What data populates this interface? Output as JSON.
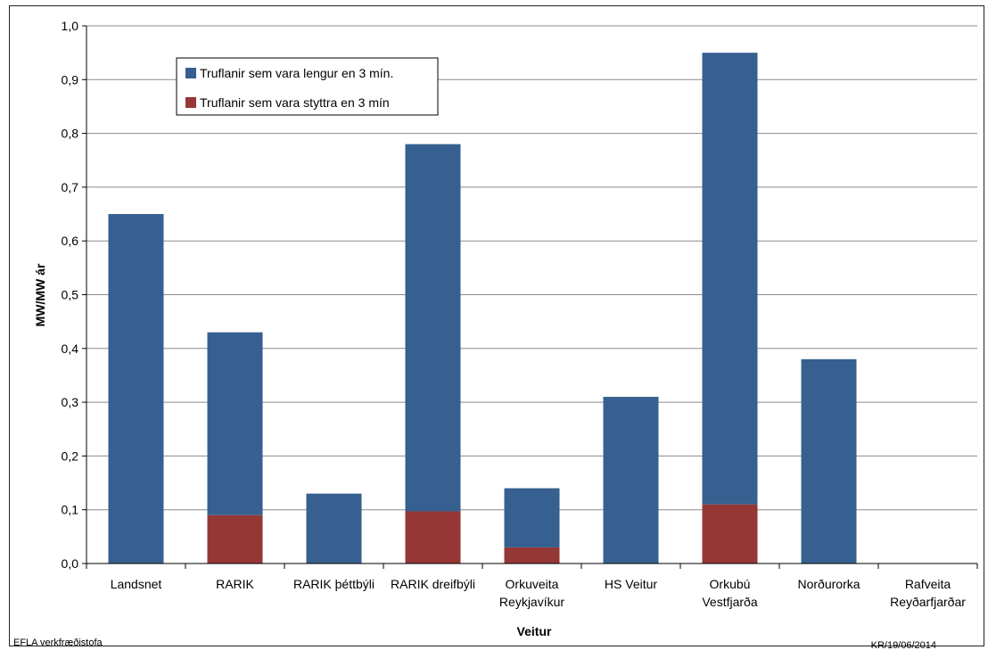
{
  "chart_data": {
    "type": "bar",
    "stacked": true,
    "categories": [
      [
        "Landsnet"
      ],
      [
        "RARIK"
      ],
      [
        "RARIK þéttbýli"
      ],
      [
        "RARIK dreifbýli"
      ],
      [
        "Orkuveita",
        "Reykjavíkur"
      ],
      [
        "HS Veitur"
      ],
      [
        "Orkubú",
        "Vestfjarða"
      ],
      [
        "Norðurorka"
      ],
      [
        "Rafveita",
        "Reyðarfjarðar"
      ]
    ],
    "series": [
      {
        "name": "Truflanir sem vara styttra en 3 mín",
        "color": "#953735",
        "values": [
          0,
          0.09,
          0,
          0.097,
          0.03,
          0,
          0.11,
          0,
          0
        ]
      },
      {
        "name": "Truflanir sem vara lengur en 3 mín.",
        "color": "#36608f",
        "values": [
          0.65,
          0.34,
          0.13,
          0.683,
          0.11,
          0.31,
          0.84,
          0.38,
          0
        ]
      }
    ],
    "legend_order": [
      1,
      0
    ],
    "xlabel": "Veitur",
    "ylabel": "MW/MW ár",
    "ylim": [
      0,
      1.0
    ],
    "yticks": [
      "0,0",
      "0,1",
      "0,2",
      "0,3",
      "0,4",
      "0,5",
      "0,6",
      "0,7",
      "0,8",
      "0,9",
      "1,0"
    ],
    "grid": true,
    "legend_position": "top-left"
  },
  "footer": {
    "left": "EFLA verkfræðistofa",
    "right": "KR/19/06/2014"
  }
}
